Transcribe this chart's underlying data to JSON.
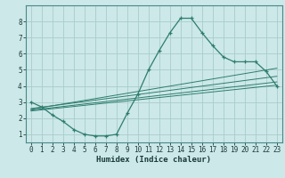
{
  "xlabel": "Humidex (Indice chaleur)",
  "bg_color": "#cce8e8",
  "grid_color": "#aacccc",
  "line_color": "#2e7d6e",
  "xlim": [
    -0.5,
    23.5
  ],
  "ylim": [
    0.5,
    9.0
  ],
  "xticks": [
    0,
    1,
    2,
    3,
    4,
    5,
    6,
    7,
    8,
    9,
    10,
    11,
    12,
    13,
    14,
    15,
    16,
    17,
    18,
    19,
    20,
    21,
    22,
    23
  ],
  "yticks": [
    1,
    2,
    3,
    4,
    5,
    6,
    7,
    8
  ],
  "main_x": [
    0,
    1,
    2,
    3,
    4,
    5,
    6,
    7,
    8,
    9,
    10,
    11,
    12,
    13,
    14,
    15,
    16,
    17,
    18,
    19,
    20,
    21,
    22,
    23
  ],
  "main_y": [
    3.0,
    2.7,
    2.2,
    1.8,
    1.3,
    1.0,
    0.9,
    0.9,
    1.0,
    2.3,
    3.5,
    5.0,
    6.2,
    7.3,
    8.2,
    8.2,
    7.3,
    6.5,
    5.8,
    5.5,
    5.5,
    5.5,
    4.9,
    4.0
  ],
  "trend1_x": [
    0,
    23
  ],
  "trend1_y": [
    2.45,
    4.05
  ],
  "trend2_x": [
    0,
    23
  ],
  "trend2_y": [
    2.55,
    5.1
  ],
  "trend3_x": [
    0,
    23
  ],
  "trend3_y": [
    2.6,
    4.6
  ],
  "trend4_x": [
    0,
    23
  ],
  "trend4_y": [
    2.5,
    4.25
  ]
}
